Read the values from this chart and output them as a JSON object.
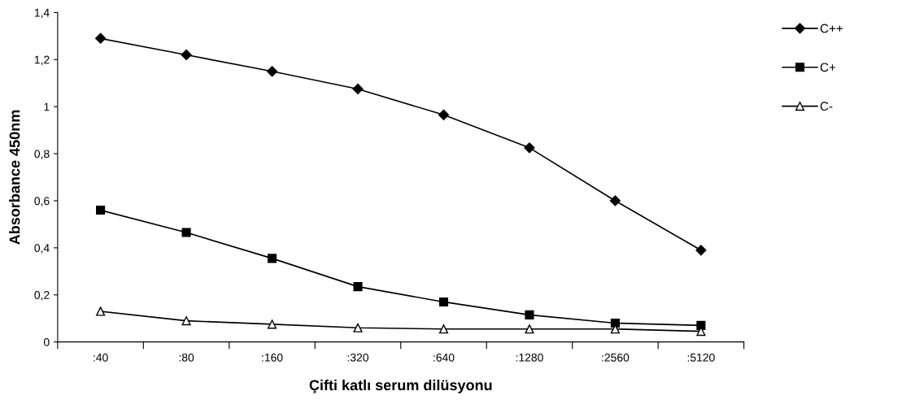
{
  "chart_data": {
    "type": "line",
    "xlabel": "Çifti katlı serum dilüsyonu",
    "ylabel": "Absorbance 450nm",
    "categories": [
      ":40",
      ":80",
      ":160",
      ":320",
      ":640",
      ":1280",
      ":2560",
      ":5120"
    ],
    "series": [
      {
        "name": "C++",
        "color": "#000000",
        "marker": "diamond",
        "values": [
          1.29,
          1.22,
          1.15,
          1.075,
          0.965,
          0.825,
          0.6,
          0.39
        ]
      },
      {
        "name": "C+",
        "color": "#000000",
        "marker": "square",
        "values": [
          0.56,
          0.465,
          0.355,
          0.235,
          0.17,
          0.115,
          0.08,
          0.07
        ]
      },
      {
        "name": "C-",
        "color": "#000000",
        "marker": "triangle",
        "values": [
          0.13,
          0.09,
          0.075,
          0.06,
          0.055,
          0.055,
          0.055,
          0.045
        ]
      }
    ],
    "ylim": [
      0,
      1.4
    ],
    "yticks": [
      0,
      {
        "value": 0.2,
        "label": "0,2"
      },
      {
        "value": 0.4,
        "label": "0,4"
      },
      {
        "value": 0.6,
        "label": "0,6"
      },
      {
        "value": 0.8,
        "label": "0,8"
      },
      1,
      {
        "value": 1.2,
        "label": "1,2"
      },
      {
        "value": 1.4,
        "label": "1,4"
      }
    ],
    "grid": false,
    "legend": "top right",
    "line_style": "solid"
  }
}
